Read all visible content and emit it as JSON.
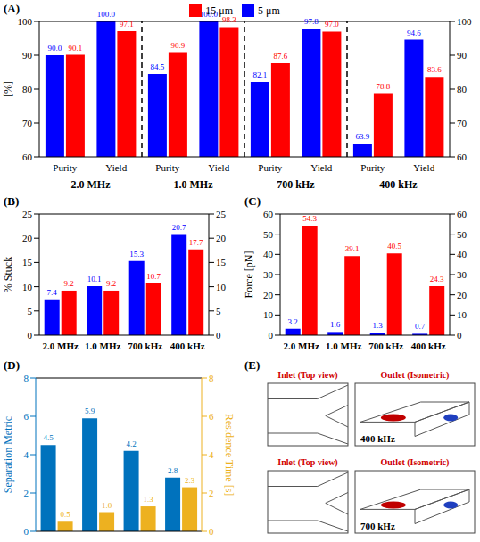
{
  "chart_data": [
    {
      "panel": "(A)",
      "type": "bar",
      "categories": [
        "Purity",
        "Yield",
        "Purity",
        "Yield",
        "Purity",
        "Yield",
        "Purity",
        "Yield"
      ],
      "groups": [
        "2.0 MHz",
        "1.0 MHz",
        "700 kHz",
        "400 kHz"
      ],
      "ylabel": "[%]",
      "ylim": [
        60,
        100
      ],
      "yticks": [
        60,
        70,
        80,
        90,
        100
      ],
      "legend": "top",
      "data_labels": true,
      "series": [
        {
          "name": "5 μm",
          "color": "#0000ff",
          "values": [
            90.0,
            100.0,
            84.5,
            100.0,
            82.1,
            97.8,
            63.9,
            94.6
          ],
          "value_labels": [
            "90.0",
            "100.0",
            "84.5",
            "100.0",
            "82.1",
            "97.8",
            "63.9",
            "94.6"
          ]
        },
        {
          "name": "15 μm",
          "color": "#ff0000",
          "values": [
            90.1,
            97.1,
            90.9,
            98.3,
            87.6,
            97.0,
            78.8,
            83.6
          ],
          "value_labels": [
            "90.1",
            "97.1",
            "90.9",
            "98.3",
            "87.6",
            "97.0",
            "78.8",
            "83.6"
          ]
        }
      ]
    },
    {
      "panel": "(B)",
      "type": "bar",
      "categories": [
        "2.0 MHz",
        "1.0 MHz",
        "700 kHz",
        "400 kHz"
      ],
      "ylabel": "% Stuck",
      "ylim": [
        0,
        25
      ],
      "yticks": [
        0,
        5,
        10,
        15,
        20,
        25
      ],
      "data_labels": true,
      "series": [
        {
          "color": "#0000ff",
          "values": [
            7.4,
            10.1,
            15.3,
            20.7
          ]
        },
        {
          "color": "#ff0000",
          "values": [
            9.2,
            9.2,
            10.7,
            17.7
          ]
        }
      ]
    },
    {
      "panel": "(C)",
      "type": "bar",
      "categories": [
        "2.0 MHz",
        "1.0 MHz",
        "700 kHz",
        "400 kHz"
      ],
      "ylabel": "Force [pN]",
      "ylim": [
        0,
        60
      ],
      "yticks": [
        0,
        10,
        20,
        30,
        40,
        50,
        60
      ],
      "data_labels": true,
      "series": [
        {
          "color": "#0000ff",
          "values": [
            3.2,
            1.6,
            1.3,
            0.7
          ]
        },
        {
          "color": "#ff0000",
          "values": [
            54.3,
            39.1,
            40.5,
            24.3
          ]
        }
      ]
    },
    {
      "panel": "(D)",
      "type": "bar",
      "categories": [
        null,
        null,
        null,
        null
      ],
      "ylabel": "Separation Metric",
      "y2label": "Residence Time [s]",
      "ylim": [
        0,
        8
      ],
      "yticks": [
        0,
        2,
        4,
        6,
        8
      ],
      "y2lim": [
        0,
        8
      ],
      "y2ticks": [
        0,
        2,
        4,
        6,
        8
      ],
      "data_labels": true,
      "series": [
        {
          "color": "#0072bd",
          "values": [
            4.5,
            5.9,
            4.2,
            2.8
          ]
        },
        {
          "color": "#edb120",
          "axis": "y2",
          "values": [
            0.5,
            1.0,
            1.3,
            2.3
          ],
          "value_labels": [
            "0.5",
            "1.0",
            "1.3",
            "2.3"
          ]
        }
      ]
    }
  ],
  "diagram": {
    "panel": "(E)",
    "rows": [
      {
        "inlet": "Inlet (Top view)",
        "outlet": "Outlet (Isometric)",
        "label": "400 kHz"
      },
      {
        "inlet": "Inlet (Top view)",
        "outlet": "Outlet (Isometric)",
        "label": "700 kHz"
      }
    ]
  }
}
